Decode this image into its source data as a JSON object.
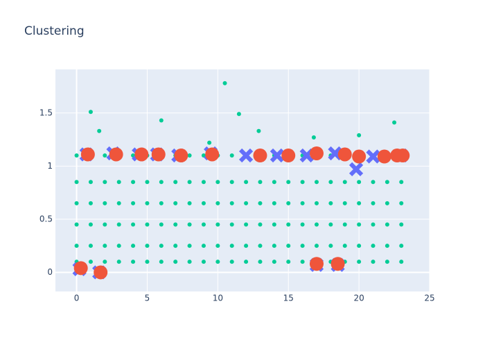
{
  "chart_data": {
    "type": "scatter",
    "title": "Clustering",
    "xlim": [
      -1.5,
      25
    ],
    "ylim": [
      -0.18,
      1.91
    ],
    "xticks": [
      0,
      5,
      10,
      15,
      20,
      25
    ],
    "yticks": [
      0,
      0.5,
      1,
      1.5
    ],
    "grid": true,
    "series": [
      {
        "color": "#00cc96",
        "marker": "circle",
        "x": [
          0,
          0,
          0,
          0,
          0,
          0,
          1,
          1,
          1,
          1,
          1,
          1,
          2,
          2,
          2,
          2,
          2,
          2,
          3,
          3,
          3,
          3,
          3,
          3,
          4,
          4,
          4,
          4,
          4,
          4,
          5,
          5,
          5,
          5,
          5,
          5,
          6,
          6,
          6,
          6,
          6,
          6,
          7,
          7,
          7,
          7,
          7,
          7,
          8,
          8,
          8,
          8,
          8,
          8,
          9,
          9,
          9,
          9,
          9,
          9,
          10,
          10,
          10,
          10,
          10,
          10,
          11,
          11,
          11,
          11,
          11,
          11,
          12,
          12,
          12,
          12,
          12,
          12,
          13,
          13,
          13,
          13,
          13,
          13,
          14,
          14,
          14,
          14,
          14,
          14,
          15,
          15,
          15,
          15,
          15,
          15,
          16,
          16,
          16,
          16,
          16,
          16,
          17,
          17,
          17,
          17,
          17,
          17,
          18,
          18,
          18,
          18,
          18,
          18,
          19,
          19,
          19,
          19,
          19,
          19,
          20,
          20,
          20,
          20,
          20,
          20,
          21,
          21,
          21,
          21,
          21,
          21,
          22,
          22,
          22,
          22,
          22,
          22,
          23,
          23,
          23,
          23,
          23,
          23,
          1.0,
          1.6,
          10.5,
          11.5,
          12.9,
          6.0,
          22.5,
          20.0,
          16.8,
          9.4
        ],
        "y": [
          0.1,
          0.25,
          0.45,
          0.65,
          0.85,
          1.1,
          0.1,
          0.25,
          0.45,
          0.65,
          0.85,
          1.1,
          0.1,
          0.25,
          0.45,
          0.65,
          0.85,
          1.1,
          0.1,
          0.25,
          0.45,
          0.65,
          0.85,
          1.1,
          0.1,
          0.25,
          0.45,
          0.65,
          0.85,
          1.1,
          0.1,
          0.25,
          0.45,
          0.65,
          0.85,
          1.1,
          0.1,
          0.25,
          0.45,
          0.65,
          0.85,
          1.1,
          0.1,
          0.25,
          0.45,
          0.65,
          0.85,
          1.1,
          0.1,
          0.25,
          0.45,
          0.65,
          0.85,
          1.1,
          0.1,
          0.25,
          0.45,
          0.65,
          0.85,
          1.1,
          0.1,
          0.25,
          0.45,
          0.65,
          0.85,
          1.1,
          0.1,
          0.25,
          0.45,
          0.65,
          0.85,
          1.1,
          0.1,
          0.25,
          0.45,
          0.65,
          0.85,
          1.1,
          0.1,
          0.25,
          0.45,
          0.65,
          0.85,
          1.1,
          0.1,
          0.25,
          0.45,
          0.65,
          0.85,
          1.1,
          0.1,
          0.25,
          0.45,
          0.65,
          0.85,
          1.1,
          0.1,
          0.25,
          0.45,
          0.65,
          0.85,
          1.1,
          0.1,
          0.25,
          0.45,
          0.65,
          0.85,
          1.1,
          0.1,
          0.25,
          0.45,
          0.65,
          0.85,
          1.1,
          0.1,
          0.25,
          0.45,
          0.65,
          0.85,
          1.1,
          0.1,
          0.25,
          0.45,
          0.65,
          0.85,
          1.1,
          0.1,
          0.25,
          0.45,
          0.65,
          0.85,
          1.1,
          0.1,
          0.25,
          0.45,
          0.65,
          0.85,
          1.1,
          0.1,
          0.25,
          0.45,
          0.65,
          0.85,
          1.1,
          1.51,
          1.33,
          1.78,
          1.49,
          1.33,
          1.43,
          1.41,
          1.29,
          1.27,
          1.22
        ]
      },
      {
        "color": "#636efa",
        "marker": "x",
        "x": [
          0.2,
          1.6,
          0.7,
          2.6,
          4.4,
          5.7,
          7.2,
          9.5,
          12.0,
          14.2,
          16.3,
          18.3,
          19.8,
          21.0,
          23.0,
          17.0,
          18.5
        ],
        "y": [
          0.03,
          0.0,
          1.11,
          1.12,
          1.11,
          1.11,
          1.1,
          1.12,
          1.1,
          1.1,
          1.1,
          1.12,
          0.97,
          1.09,
          1.1,
          0.07,
          0.07
        ]
      },
      {
        "color": "#ef553b",
        "marker": "circle-large",
        "x": [
          0.3,
          1.7,
          0.8,
          2.8,
          4.6,
          5.8,
          7.4,
          9.6,
          13.0,
          15.0,
          17.0,
          17.0,
          18.5,
          19.0,
          20.0,
          21.8,
          22.7,
          23.1
        ],
        "y": [
          0.04,
          0.0,
          1.11,
          1.11,
          1.11,
          1.11,
          1.1,
          1.11,
          1.1,
          1.1,
          1.12,
          0.08,
          0.08,
          1.11,
          1.09,
          1.09,
          1.1,
          1.1
        ]
      }
    ]
  }
}
